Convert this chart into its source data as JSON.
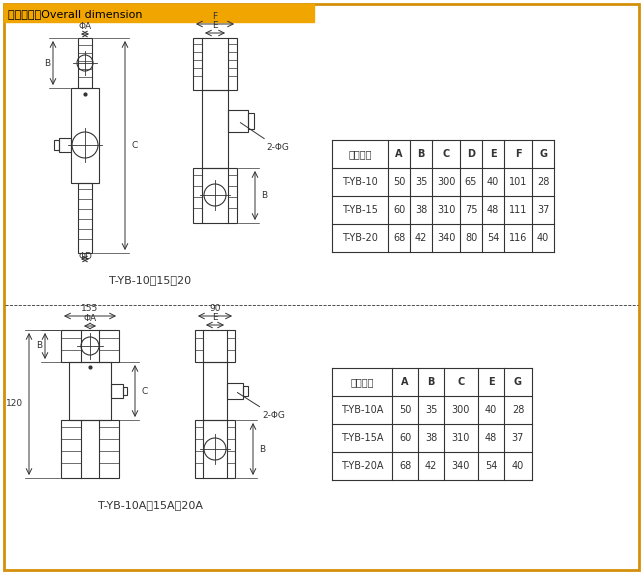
{
  "title": "外形尺寸：Overall dimension",
  "title_bg": "#F0A500",
  "border_color": "#D4900A",
  "line_color": "#333333",
  "bg_color": "#FFFFFF",
  "table1_headers": [
    "产品型号",
    "A",
    "B",
    "C",
    "D",
    "E",
    "F",
    "G"
  ],
  "table1_rows": [
    [
      "T-YB-10",
      "50",
      "35",
      "300",
      "65",
      "40",
      "101",
      "28"
    ],
    [
      "T-YB-15",
      "60",
      "38",
      "310",
      "75",
      "48",
      "111",
      "37"
    ],
    [
      "T-YB-20",
      "68",
      "42",
      "340",
      "80",
      "54",
      "116",
      "40"
    ]
  ],
  "table2_headers": [
    "产品型号",
    "A",
    "B",
    "C",
    "E",
    "G"
  ],
  "table2_rows": [
    [
      "T-YB-10A",
      "50",
      "35",
      "300",
      "40",
      "28"
    ],
    [
      "T-YB-15A",
      "60",
      "38",
      "310",
      "48",
      "37"
    ],
    [
      "T-YB-20A",
      "68",
      "42",
      "340",
      "54",
      "40"
    ]
  ],
  "label1": "T-YB-10、15、20",
  "label2": "T-YB-10A、15A、20A",
  "dim_155": "155",
  "dim_90": "90",
  "dim_120": "120"
}
